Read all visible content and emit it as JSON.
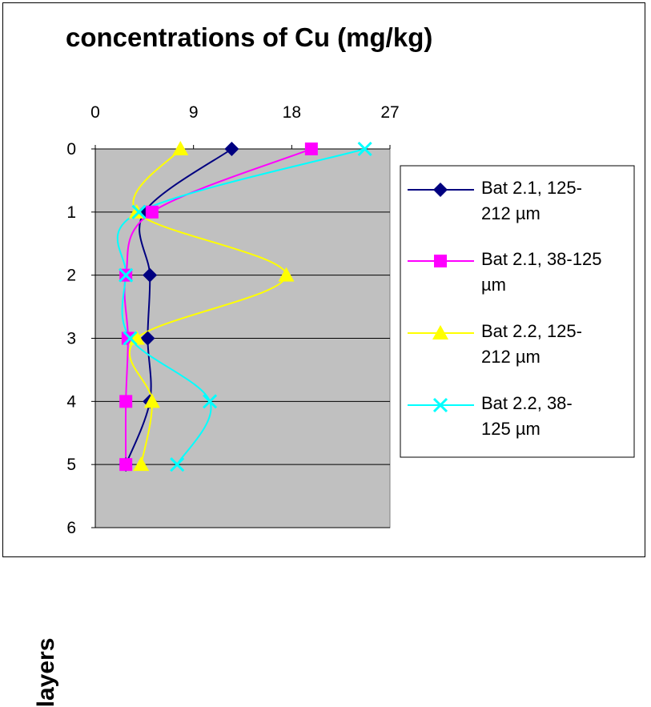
{
  "chart_data": {
    "type": "line",
    "title": "concentrations of Cu (mg/kg)",
    "ylabel": "layers",
    "xlabel": "",
    "x_axis_position": "top",
    "y_axis_inverted": true,
    "xlim": [
      0,
      27
    ],
    "ylim": [
      0,
      6
    ],
    "x_ticks": [
      "0",
      "9",
      "18",
      "27"
    ],
    "y_ticks": [
      "0",
      "1",
      "2",
      "3",
      "4",
      "5",
      "6"
    ],
    "plot_background": "#c0c0c0",
    "grid": "horizontal",
    "legend_position": "right",
    "series": [
      {
        "name_lines": [
          "Bat 2.1, 125-",
          "212 µm"
        ],
        "color": "#000080",
        "marker": "diamond",
        "x": [
          12.5,
          4.5,
          5.0,
          4.8,
          5.0,
          2.8
        ],
        "y": [
          0,
          1,
          2,
          3,
          4,
          5
        ]
      },
      {
        "name_lines": [
          "Bat 2.1, 38-125",
          "µm"
        ],
        "color": "#ff00ff",
        "marker": "square",
        "x": [
          19.8,
          5.2,
          2.8,
          3.0,
          2.8,
          2.8
        ],
        "y": [
          0,
          1,
          2,
          3,
          4,
          5
        ]
      },
      {
        "name_lines": [
          "Bat 2.2, 125-",
          "212 µm"
        ],
        "color": "#ffff00",
        "marker": "triangle",
        "x": [
          7.8,
          3.8,
          17.5,
          3.8,
          5.2,
          4.2
        ],
        "y": [
          0,
          1,
          2,
          3,
          4,
          5
        ]
      },
      {
        "name_lines": [
          "Bat 2.2, 38-",
          "125 µm"
        ],
        "color": "#00ffff",
        "marker": "x",
        "x": [
          24.7,
          4.0,
          2.8,
          3.2,
          10.5,
          7.5
        ],
        "y": [
          0,
          1,
          2,
          3,
          4,
          5
        ]
      }
    ]
  }
}
